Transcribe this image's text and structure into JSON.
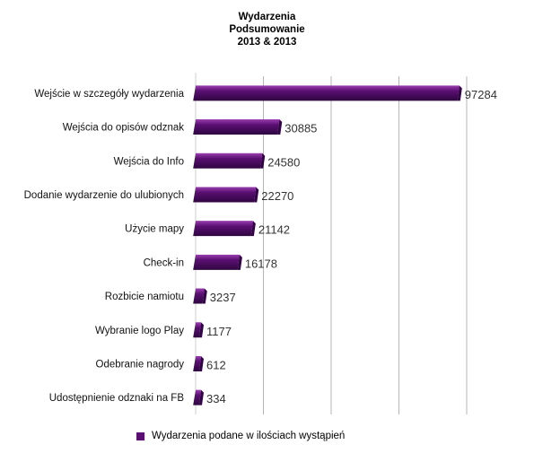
{
  "chart_data": {
    "type": "bar",
    "orientation": "horizontal",
    "title": "Wydarzenia",
    "subtitle": "Podsumowanie",
    "subtitle2": "2013 & 2013",
    "categories": [
      "Wejście w szczegóły wydarzenia",
      "Wejścia do opisów odznak",
      "Wejścia do Info",
      "Dodanie wydarzenie do ulubionych",
      "Użycie mapy",
      "Check-in",
      "Rozbicie namiotu",
      "Wybranie logo Play",
      "Odebranie nagrody",
      "Udostępnienie odznaki na FB"
    ],
    "series": [
      {
        "name": "Wydarzenia podane w ilościach wystąpień",
        "values": [
          97284,
          30885,
          24580,
          22270,
          21142,
          16178,
          3237,
          1177,
          612,
          334
        ]
      }
    ],
    "xlim": [
      0,
      100000
    ],
    "grid": true,
    "legend_position": "bottom",
    "bar_color": "#5b0f73",
    "bar_highlight": "#9a3fb0",
    "bar_end_color": "#2e0640"
  }
}
